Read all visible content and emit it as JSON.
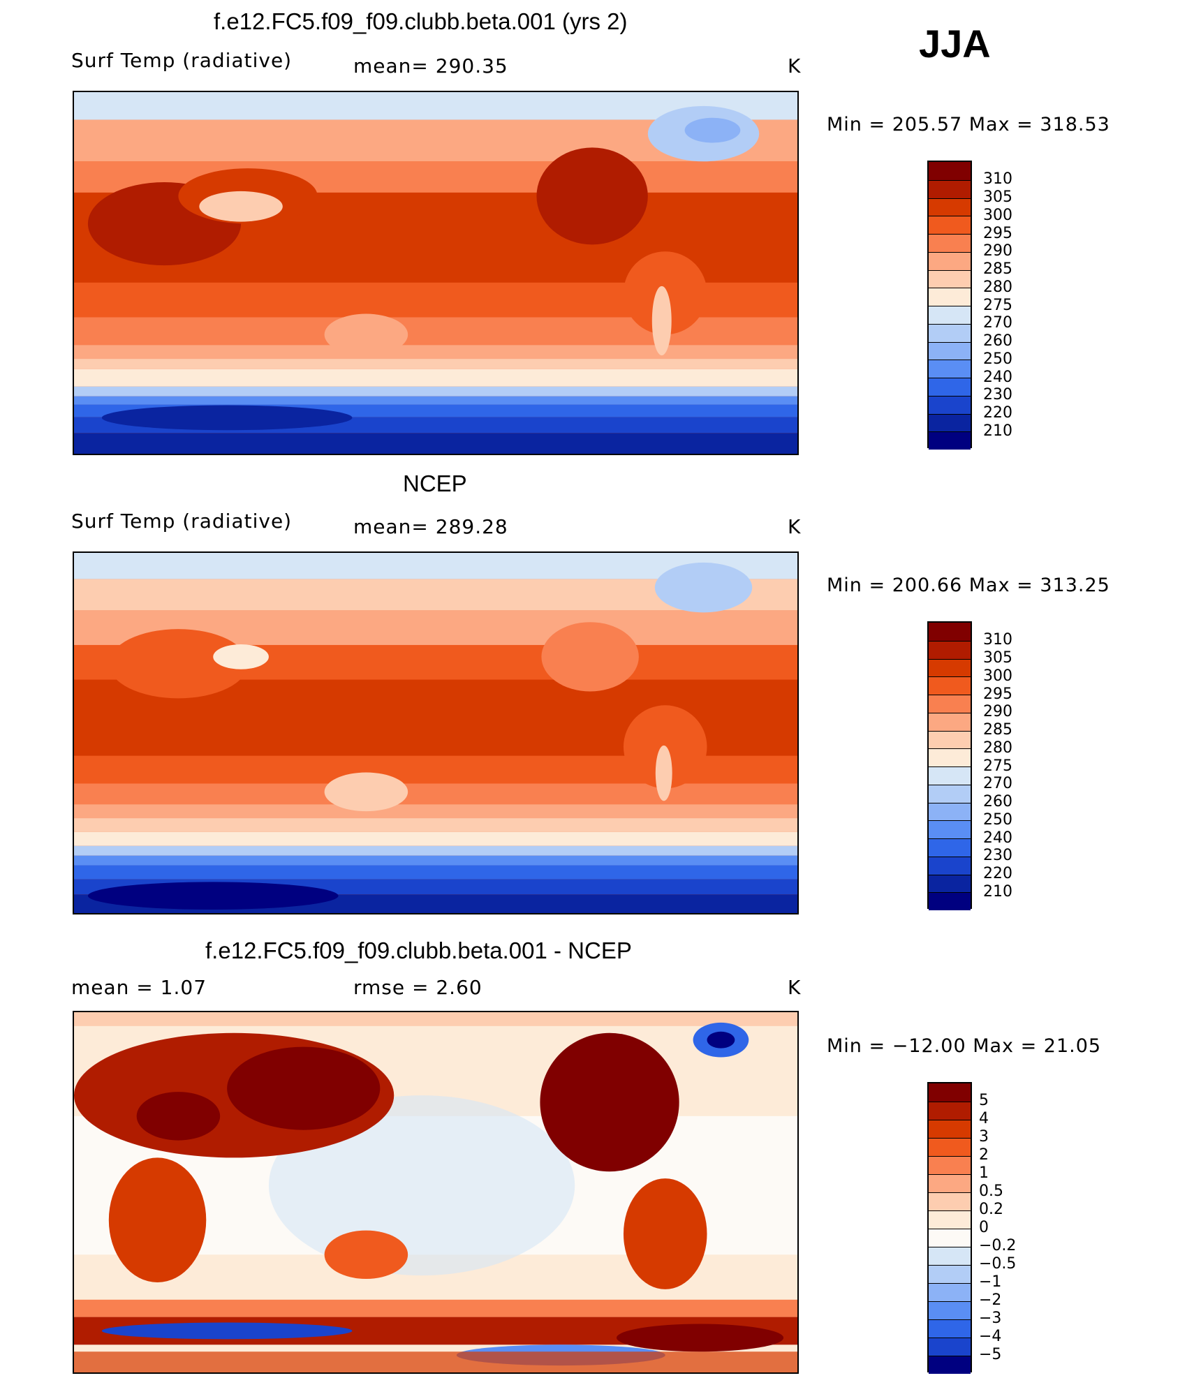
{
  "season": "JJA",
  "panels": [
    {
      "title": "f.e12.FC5.f09_f09.clubb.beta.001 (yrs 2)",
      "variable": "Surf Temp (radiative)",
      "stat": "mean=  290.35",
      "units": "K",
      "minmax": "Min  =  205.57  Max  =  318.53",
      "colorbar": {
        "labels": [
          "310",
          "305",
          "300",
          "295",
          "290",
          "285",
          "280",
          "275",
          "270",
          "260",
          "250",
          "240",
          "230",
          "220",
          "210"
        ],
        "colors": [
          "#800000",
          "#b01c00",
          "#d63a00",
          "#f05a1e",
          "#f98050",
          "#fca882",
          "#fdcdb0",
          "#fdebd8",
          "#d6e6f6",
          "#b2cdf6",
          "#8cb2f6",
          "#5a8ef4",
          "#2f66e8",
          "#1a44cc",
          "#0a24a0",
          "#000080"
        ]
      }
    },
    {
      "title": "NCEP",
      "variable": "Surf Temp (radiative)",
      "stat": "mean=  289.28",
      "units": "K",
      "minmax": "Min  =  200.66  Max  =  313.25",
      "colorbar": {
        "labels": [
          "310",
          "305",
          "300",
          "295",
          "290",
          "285",
          "280",
          "275",
          "270",
          "260",
          "250",
          "240",
          "230",
          "220",
          "210"
        ],
        "colors": [
          "#800000",
          "#b01c00",
          "#d63a00",
          "#f05a1e",
          "#f98050",
          "#fca882",
          "#fdcdb0",
          "#fdebd8",
          "#d6e6f6",
          "#b2cdf6",
          "#8cb2f6",
          "#5a8ef4",
          "#2f66e8",
          "#1a44cc",
          "#0a24a0",
          "#000080"
        ]
      }
    },
    {
      "title": "f.e12.FC5.f09_f09.clubb.beta.001 - NCEP",
      "variable": "mean  =      1.07",
      "stat": "rmse  =      2.60",
      "units": "K",
      "minmax": "Min  =  −12.00  Max  =    21.05",
      "colorbar": {
        "labels": [
          "5",
          "4",
          "3",
          "2",
          "1",
          "0.5",
          "0.2",
          "0",
          "−0.2",
          "−0.5",
          "−1",
          "−2",
          "−3",
          "−4",
          "−5"
        ],
        "colors": [
          "#800000",
          "#b01c00",
          "#d63a00",
          "#f05a1e",
          "#f98050",
          "#fca882",
          "#fdcdb0",
          "#fdebd8",
          "#fdfaf6",
          "#d6e6f6",
          "#b2cdf6",
          "#8cb2f6",
          "#5a8ef4",
          "#2f66e8",
          "#1a44cc",
          "#000080"
        ]
      }
    }
  ]
}
